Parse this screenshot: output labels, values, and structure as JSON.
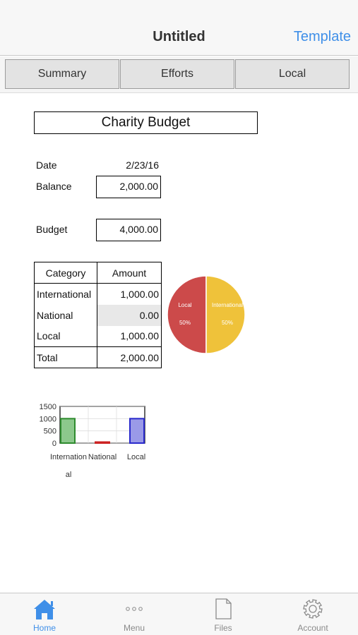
{
  "nav": {
    "title": "Untitled",
    "right_label": "Template"
  },
  "segments": [
    "Summary",
    "Efforts",
    "Local"
  ],
  "sheet": {
    "title": "Charity Budget",
    "date_label": "Date",
    "date_value": "2/23/16",
    "balance_label": "Balance",
    "balance_value": "2,000.00",
    "budget_label": "Budget",
    "budget_value": "4,000.00"
  },
  "table": {
    "headers": [
      "Category",
      "Amount"
    ],
    "rows": [
      [
        "International",
        "1,000.00"
      ],
      [
        "National",
        "0.00"
      ],
      [
        "Local",
        "1,000.00"
      ]
    ],
    "total": [
      "Total",
      "2,000.00"
    ]
  },
  "chart_data": [
    {
      "type": "pie",
      "slices": [
        {
          "label": "Local",
          "value": 50,
          "percent_label": "50%",
          "color": "#cc4a4a"
        },
        {
          "label": "International",
          "value": 50,
          "percent_label": "50%",
          "color": "#efc23a"
        }
      ]
    },
    {
      "type": "bar",
      "categories": [
        "International",
        "National",
        "Local"
      ],
      "values": [
        1000,
        0,
        1000
      ],
      "ylim": [
        0,
        1500
      ],
      "yticks": [
        "1500",
        "1000",
        "500",
        "0"
      ],
      "bar_colors": [
        "#2e8b2e",
        "#cc2222",
        "#2a2acc"
      ],
      "bar_fills": [
        "#8cc88c",
        "#e06060",
        "#9a9ae8"
      ],
      "grid": true
    }
  ],
  "tabbar": {
    "items": [
      {
        "label": "Home",
        "icon": "home-icon"
      },
      {
        "label": "Menu",
        "icon": "more-dots-icon"
      },
      {
        "label": "Files",
        "icon": "file-icon"
      },
      {
        "label": "Account",
        "icon": "gear-icon"
      }
    ]
  },
  "colors": {
    "accent": "#3f8fe8"
  }
}
